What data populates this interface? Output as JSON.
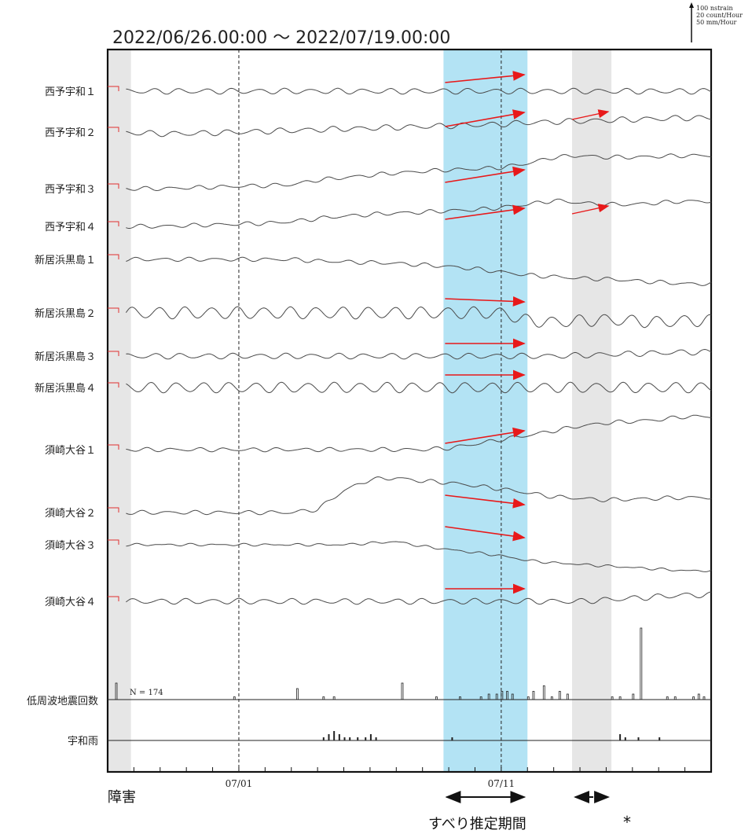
{
  "title": "2022/06/26.00:00 ～ 2022/07/19.00:00",
  "scale_legend": [
    "100 nstrain",
    "20 count/Hour",
    "50 mm/Hour"
  ],
  "colors": {
    "trace": "#4a4a4a",
    "offset_tick": "#e03030",
    "arrow": "#e8191a",
    "slip_band": "#b3e3f4",
    "gray_band": "#e6e6e6"
  },
  "chart_data": {
    "type": "line",
    "x_range": [
      "2022-06-26 00:00",
      "2022-07-19 00:00"
    ],
    "x_ticks": [
      "07/01",
      "07/11"
    ],
    "series": [
      {
        "name": "西予宇和１",
        "trend": [
          0,
          0,
          0,
          0,
          0,
          0,
          0,
          0,
          0,
          0,
          0,
          0,
          0,
          0,
          0,
          0,
          0,
          0,
          0,
          0,
          0,
          0,
          0
        ],
        "wiggle": 3
      },
      {
        "name": "西予宇和２",
        "trend": [
          0,
          -1,
          -2,
          -2,
          -1,
          0,
          1,
          2,
          3,
          4,
          5,
          6,
          7,
          8,
          9,
          10,
          12,
          13,
          14,
          15,
          16,
          17,
          18
        ],
        "wiggle": 3
      },
      {
        "name": "西予宇和３",
        "trend": [
          0,
          0,
          0,
          1,
          2,
          3,
          4,
          5,
          11,
          14,
          17,
          20,
          22,
          24,
          25,
          27,
          32,
          40,
          42,
          40,
          40,
          41,
          42
        ],
        "wiggle": 2
      },
      {
        "name": "西予宇和４",
        "trend": [
          0,
          0,
          0,
          1,
          2,
          3,
          4,
          6,
          10,
          13,
          15,
          17,
          18,
          20,
          21,
          24,
          28,
          33,
          30,
          28,
          28,
          30,
          32
        ],
        "wiggle": 2
      },
      {
        "name": "新居浜黒島１",
        "trend": [
          0,
          0,
          0,
          0,
          0,
          0,
          0,
          0,
          -2,
          -3,
          -4,
          -5,
          -7,
          -9,
          -12,
          -16,
          -20,
          -22,
          -24,
          -25,
          -27,
          -29,
          -31
        ],
        "wiggle": 2
      },
      {
        "name": "新居浜黒島２",
        "trend": [
          0,
          0,
          0,
          0,
          0,
          0,
          0,
          0,
          0,
          0,
          0,
          0,
          0,
          0,
          0,
          0,
          -10,
          -12,
          -10,
          -9,
          -10,
          -12,
          -10
        ],
        "wiggle": 7
      },
      {
        "name": "新居浜黒島３",
        "trend": [
          0,
          0,
          0,
          0,
          0,
          0,
          0,
          0,
          0,
          0,
          0,
          0,
          0,
          0,
          0,
          0,
          0,
          0,
          1,
          2,
          3,
          4,
          5
        ],
        "wiggle": 3
      },
      {
        "name": "新居浜黒島４",
        "trend": [
          0,
          0,
          0,
          0,
          0,
          0,
          0,
          0,
          0,
          0,
          0,
          0,
          0,
          0,
          0,
          0,
          0,
          0,
          0,
          0,
          0,
          0,
          0
        ],
        "wiggle": 6
      },
      {
        "name": "須崎大谷１",
        "trend": [
          0,
          0,
          0,
          0,
          0,
          0,
          0,
          0,
          0,
          0,
          0,
          0,
          0,
          2,
          7,
          13,
          18,
          24,
          30,
          34,
          36,
          38,
          42
        ],
        "wiggle": 2
      },
      {
        "name": "須崎大谷２",
        "trend": [
          0,
          0,
          0,
          0,
          0,
          0,
          0,
          0,
          4,
          28,
          42,
          44,
          40,
          38,
          34,
          30,
          25,
          20,
          18,
          16,
          17,
          18,
          19
        ],
        "wiggle": 2
      },
      {
        "name": "須崎大谷３",
        "trend": [
          0,
          0,
          0,
          0,
          0,
          0,
          0,
          0,
          0,
          0,
          2,
          4,
          -2,
          -6,
          -10,
          -14,
          -20,
          -23,
          -25,
          -27,
          -29,
          -31,
          -33
        ],
        "wiggle": 1
      },
      {
        "name": "須崎大谷４",
        "trend": [
          0,
          0,
          0,
          0,
          0,
          0,
          0,
          0,
          0,
          0,
          0,
          0,
          0,
          0,
          0,
          0,
          0,
          0,
          0,
          2,
          4,
          6,
          8
        ],
        "wiggle": 3
      }
    ],
    "lfe_counts": {
      "name": "低周波地震回数",
      "N_label": "N = ",
      "N": "174",
      "bars": [
        [
          0.3,
          6
        ],
        [
          4.8,
          1
        ],
        [
          7.2,
          4
        ],
        [
          8.2,
          1
        ],
        [
          8.6,
          1
        ],
        [
          11.2,
          6
        ],
        [
          12.5,
          1
        ],
        [
          13.4,
          1
        ],
        [
          14.2,
          1
        ],
        [
          14.5,
          2
        ],
        [
          14.8,
          2
        ],
        [
          15.0,
          3
        ],
        [
          15.2,
          3
        ],
        [
          15.4,
          2
        ],
        [
          16.0,
          1
        ],
        [
          16.2,
          3
        ],
        [
          16.6,
          5
        ],
        [
          16.9,
          1
        ],
        [
          17.2,
          3
        ],
        [
          17.5,
          2
        ],
        [
          19.2,
          1
        ],
        [
          19.5,
          1
        ],
        [
          20.0,
          2
        ],
        [
          20.3,
          26
        ],
        [
          21.3,
          1
        ],
        [
          21.6,
          1
        ],
        [
          22.3,
          1
        ],
        [
          22.5,
          2
        ],
        [
          22.7,
          1
        ]
      ]
    },
    "rain": {
      "name": "宇和雨",
      "bars": [
        [
          8.2,
          1
        ],
        [
          8.4,
          2
        ],
        [
          8.6,
          3
        ],
        [
          8.8,
          2
        ],
        [
          9.0,
          1
        ],
        [
          9.2,
          1
        ],
        [
          9.5,
          1
        ],
        [
          9.8,
          1
        ],
        [
          10.0,
          2
        ],
        [
          10.2,
          1
        ],
        [
          13.1,
          1
        ],
        [
          19.5,
          2
        ],
        [
          19.7,
          1
        ],
        [
          20.2,
          1
        ],
        [
          21.0,
          1
        ]
      ]
    },
    "shaded_periods": [
      {
        "kind": "障害",
        "from": 0,
        "to": 0.35
      },
      {
        "kind": "すべり推定期間",
        "from": 12.8,
        "to": 16.0
      },
      {
        "kind": "*",
        "from": 17.7,
        "to": 19.2
      }
    ],
    "arrows": [
      {
        "series": 0,
        "dy": -10
      },
      {
        "series": 1,
        "dy": -18
      },
      {
        "series": 2,
        "dy": -16
      },
      {
        "series": 3,
        "dy": -14
      },
      {
        "series": 5,
        "dy": 4
      },
      {
        "series": 6,
        "dy": 0
      },
      {
        "series": 7,
        "dy": 0
      },
      {
        "series": 8,
        "dy": -16
      },
      {
        "series": 9,
        "dy": 12
      },
      {
        "series": 10,
        "dy": 14
      },
      {
        "series": 11,
        "dy": 0
      }
    ]
  },
  "annotations": {
    "failure": "障害",
    "slip_period": "すべり推定期間",
    "asterisk": "*"
  }
}
